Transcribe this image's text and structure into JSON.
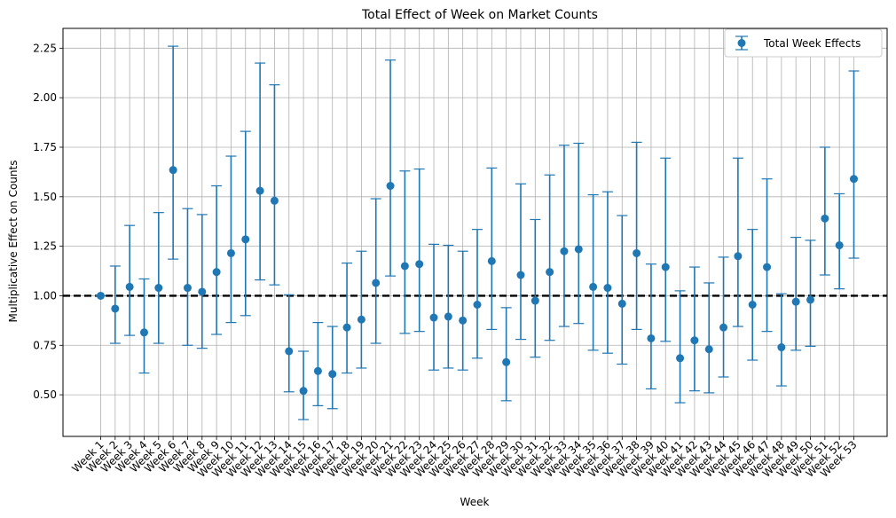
{
  "chart_data": {
    "type": "scatter",
    "title": "Total Effect of Week on Market Counts",
    "xlabel": "Week",
    "ylabel": "Multiplicative Effect on Counts",
    "ylim": [
      0.29,
      2.35
    ],
    "yticks": [
      "0.50",
      "0.75",
      "1.00",
      "1.25",
      "1.50",
      "1.75",
      "2.00",
      "2.25"
    ],
    "grid": true,
    "legend_position": "top-right",
    "reference_line": {
      "y": 1.0,
      "style": "dashed",
      "color": "#000000"
    },
    "series": [
      {
        "name": "Total Week Effects",
        "color": "#1f77b4",
        "points": [
          {
            "x": "Week 1",
            "y": 1.0,
            "lower": 1.0,
            "upper": 1.0
          },
          {
            "x": "Week 2",
            "y": 0.935,
            "lower": 0.76,
            "upper": 1.15
          },
          {
            "x": "Week 3",
            "y": 1.045,
            "lower": 0.8,
            "upper": 1.355
          },
          {
            "x": "Week 4",
            "y": 0.815,
            "lower": 0.61,
            "upper": 1.085
          },
          {
            "x": "Week 5",
            "y": 1.04,
            "lower": 0.76,
            "upper": 1.42
          },
          {
            "x": "Week 6",
            "y": 1.635,
            "lower": 1.185,
            "upper": 2.26
          },
          {
            "x": "Week 7",
            "y": 1.04,
            "lower": 0.75,
            "upper": 1.44
          },
          {
            "x": "Week 8",
            "y": 1.02,
            "lower": 0.735,
            "upper": 1.41
          },
          {
            "x": "Week 9",
            "y": 1.12,
            "lower": 0.805,
            "upper": 1.555
          },
          {
            "x": "Week 10",
            "y": 1.215,
            "lower": 0.865,
            "upper": 1.705
          },
          {
            "x": "Week 11",
            "y": 1.285,
            "lower": 0.9,
            "upper": 1.83
          },
          {
            "x": "Week 12",
            "y": 1.53,
            "lower": 1.08,
            "upper": 2.175
          },
          {
            "x": "Week 13",
            "y": 1.48,
            "lower": 1.055,
            "upper": 2.065
          },
          {
            "x": "Week 14",
            "y": 0.72,
            "lower": 0.515,
            "upper": 1.005
          },
          {
            "x": "Week 15",
            "y": 0.52,
            "lower": 0.375,
            "upper": 0.72
          },
          {
            "x": "Week 16",
            "y": 0.62,
            "lower": 0.445,
            "upper": 0.865
          },
          {
            "x": "Week 17",
            "y": 0.605,
            "lower": 0.43,
            "upper": 0.845
          },
          {
            "x": "Week 18",
            "y": 0.84,
            "lower": 0.61,
            "upper": 1.165
          },
          {
            "x": "Week 19",
            "y": 0.88,
            "lower": 0.635,
            "upper": 1.225
          },
          {
            "x": "Week 20",
            "y": 1.065,
            "lower": 0.76,
            "upper": 1.49
          },
          {
            "x": "Week 21",
            "y": 1.555,
            "lower": 1.1,
            "upper": 2.19
          },
          {
            "x": "Week 22",
            "y": 1.15,
            "lower": 0.81,
            "upper": 1.63
          },
          {
            "x": "Week 23",
            "y": 1.16,
            "lower": 0.82,
            "upper": 1.64
          },
          {
            "x": "Week 24",
            "y": 0.89,
            "lower": 0.625,
            "upper": 1.26
          },
          {
            "x": "Week 25",
            "y": 0.895,
            "lower": 0.635,
            "upper": 1.255
          },
          {
            "x": "Week 26",
            "y": 0.875,
            "lower": 0.625,
            "upper": 1.225
          },
          {
            "x": "Week 27",
            "y": 0.955,
            "lower": 0.685,
            "upper": 1.335
          },
          {
            "x": "Week 28",
            "y": 1.175,
            "lower": 0.83,
            "upper": 1.645
          },
          {
            "x": "Week 29",
            "y": 0.665,
            "lower": 0.47,
            "upper": 0.94
          },
          {
            "x": "Week 30",
            "y": 1.105,
            "lower": 0.78,
            "upper": 1.565
          },
          {
            "x": "Week 31",
            "y": 0.975,
            "lower": 0.69,
            "upper": 1.385
          },
          {
            "x": "Week 32",
            "y": 1.12,
            "lower": 0.775,
            "upper": 1.61
          },
          {
            "x": "Week 33",
            "y": 1.225,
            "lower": 0.845,
            "upper": 1.76
          },
          {
            "x": "Week 34",
            "y": 1.235,
            "lower": 0.86,
            "upper": 1.77
          },
          {
            "x": "Week 35",
            "y": 1.045,
            "lower": 0.725,
            "upper": 1.51
          },
          {
            "x": "Week 36",
            "y": 1.04,
            "lower": 0.71,
            "upper": 1.525
          },
          {
            "x": "Week 37",
            "y": 0.96,
            "lower": 0.655,
            "upper": 1.405
          },
          {
            "x": "Week 38",
            "y": 1.215,
            "lower": 0.83,
            "upper": 1.775
          },
          {
            "x": "Week 39",
            "y": 0.785,
            "lower": 0.53,
            "upper": 1.16
          },
          {
            "x": "Week 40",
            "y": 1.145,
            "lower": 0.77,
            "upper": 1.695
          },
          {
            "x": "Week 41",
            "y": 0.685,
            "lower": 0.46,
            "upper": 1.025
          },
          {
            "x": "Week 42",
            "y": 0.775,
            "lower": 0.52,
            "upper": 1.145
          },
          {
            "x": "Week 43",
            "y": 0.73,
            "lower": 0.51,
            "upper": 1.065
          },
          {
            "x": "Week 44",
            "y": 0.84,
            "lower": 0.59,
            "upper": 1.195
          },
          {
            "x": "Week 45",
            "y": 1.2,
            "lower": 0.845,
            "upper": 1.695
          },
          {
            "x": "Week 46",
            "y": 0.955,
            "lower": 0.675,
            "upper": 1.335
          },
          {
            "x": "Week 47",
            "y": 1.145,
            "lower": 0.82,
            "upper": 1.59
          },
          {
            "x": "Week 48",
            "y": 0.74,
            "lower": 0.545,
            "upper": 1.01
          },
          {
            "x": "Week 49",
            "y": 0.97,
            "lower": 0.725,
            "upper": 1.295
          },
          {
            "x": "Week 50",
            "y": 0.98,
            "lower": 0.745,
            "upper": 1.28
          },
          {
            "x": "Week 51",
            "y": 1.39,
            "lower": 1.105,
            "upper": 1.75
          },
          {
            "x": "Week 52",
            "y": 1.255,
            "lower": 1.035,
            "upper": 1.515
          },
          {
            "x": "Week 53",
            "y": 1.59,
            "lower": 1.19,
            "upper": 2.135
          }
        ]
      }
    ]
  }
}
